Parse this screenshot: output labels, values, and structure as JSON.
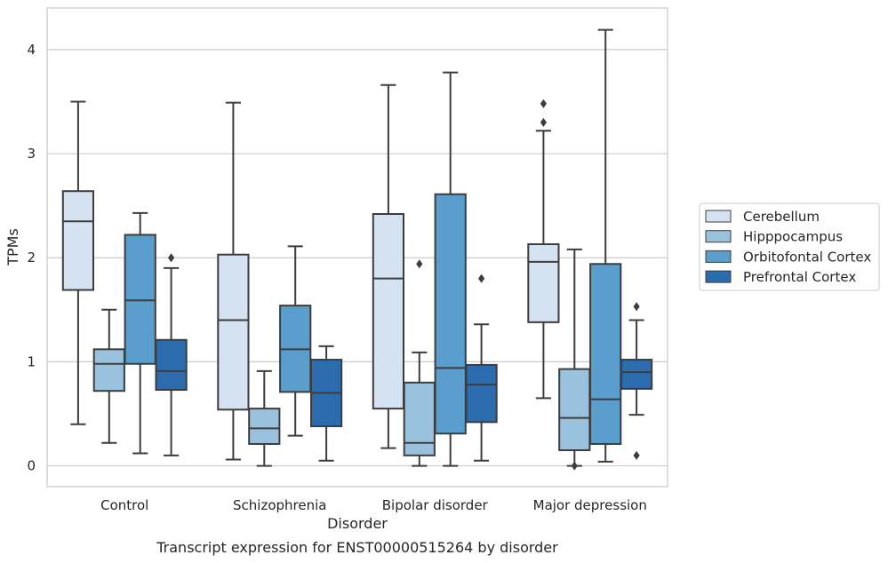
{
  "caption": "Transcript expression for ENST00000515264 by disorder",
  "chart_data": {
    "type": "box",
    "title": "",
    "xlabel": "Disorder",
    "ylabel": "TPMs",
    "ylim": [
      -0.2,
      4.4
    ],
    "yticks": [
      0,
      1,
      2,
      3,
      4
    ],
    "grid": "horizontal",
    "legend_position": "right",
    "categories": [
      "Control",
      "Schizophrenia",
      "Bipolar disorder",
      "Major depression"
    ],
    "series": [
      {
        "name": "Cerebellum",
        "color": "#d4e2f1",
        "boxes": [
          {
            "whisker_low": 0.4,
            "q1": 1.69,
            "median": 2.35,
            "q3": 2.64,
            "whisker_high": 3.5,
            "outliers": []
          },
          {
            "whisker_low": 0.06,
            "q1": 0.54,
            "median": 1.4,
            "q3": 2.03,
            "whisker_high": 3.49,
            "outliers": []
          },
          {
            "whisker_low": 0.17,
            "q1": 0.55,
            "median": 1.8,
            "q3": 2.42,
            "whisker_high": 3.66,
            "outliers": []
          },
          {
            "whisker_low": 0.65,
            "q1": 1.38,
            "median": 1.96,
            "q3": 2.13,
            "whisker_high": 3.22,
            "outliers": [
              3.3,
              3.48
            ]
          }
        ]
      },
      {
        "name": "Hipppocampus",
        "color": "#9ac2df",
        "boxes": [
          {
            "whisker_low": 0.22,
            "q1": 0.72,
            "median": 0.98,
            "q3": 1.12,
            "whisker_high": 1.5,
            "outliers": []
          },
          {
            "whisker_low": 0.0,
            "q1": 0.21,
            "median": 0.36,
            "q3": 0.55,
            "whisker_high": 0.91,
            "outliers": []
          },
          {
            "whisker_low": 0.0,
            "q1": 0.1,
            "median": 0.22,
            "q3": 0.8,
            "whisker_high": 1.09,
            "outliers": [
              1.94
            ]
          },
          {
            "whisker_low": 0.0,
            "q1": 0.15,
            "median": 0.46,
            "q3": 0.93,
            "whisker_high": 2.08,
            "outliers": [
              0.0
            ]
          }
        ]
      },
      {
        "name": "Orbitofontal Cortex",
        "color": "#5a9ecd",
        "boxes": [
          {
            "whisker_low": 0.12,
            "q1": 0.98,
            "median": 1.59,
            "q3": 2.22,
            "whisker_high": 2.43,
            "outliers": []
          },
          {
            "whisker_low": 0.29,
            "q1": 0.71,
            "median": 1.12,
            "q3": 1.54,
            "whisker_high": 2.11,
            "outliers": []
          },
          {
            "whisker_low": 0.0,
            "q1": 0.31,
            "median": 0.94,
            "q3": 2.61,
            "whisker_high": 3.78,
            "outliers": []
          },
          {
            "whisker_low": 0.04,
            "q1": 0.21,
            "median": 0.64,
            "q3": 1.94,
            "whisker_high": 4.19,
            "outliers": []
          }
        ]
      },
      {
        "name": "Prefrontal Cortex",
        "color": "#2b6cae",
        "boxes": [
          {
            "whisker_low": 0.1,
            "q1": 0.73,
            "median": 0.91,
            "q3": 1.21,
            "whisker_high": 1.9,
            "outliers": [
              2.0
            ]
          },
          {
            "whisker_low": 0.05,
            "q1": 0.38,
            "median": 0.7,
            "q3": 1.02,
            "whisker_high": 1.15,
            "outliers": []
          },
          {
            "whisker_low": 0.05,
            "q1": 0.42,
            "median": 0.78,
            "q3": 0.97,
            "whisker_high": 1.36,
            "outliers": [
              1.8
            ]
          },
          {
            "whisker_low": 0.49,
            "q1": 0.74,
            "median": 0.9,
            "q3": 1.02,
            "whisker_high": 1.4,
            "outliers": [
              0.1,
              1.53
            ]
          }
        ]
      }
    ]
  }
}
